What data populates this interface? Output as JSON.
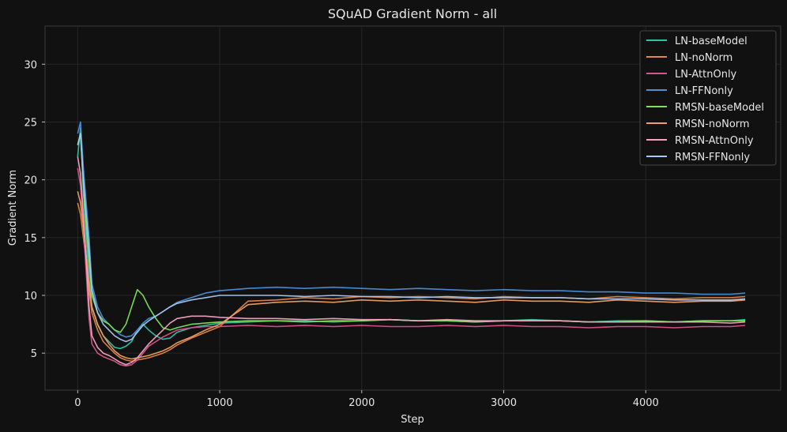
{
  "chart_data": {
    "type": "line",
    "title": "SQuAD Gradient Norm - all",
    "xlabel": "Step",
    "ylabel": "Gradient Norm",
    "xlim": [
      -230,
      4950
    ],
    "ylim": [
      1.8,
      33.3
    ],
    "xticks": [
      0,
      1000,
      2000,
      3000,
      4000
    ],
    "yticks": [
      5,
      10,
      15,
      20,
      25,
      30
    ],
    "grid": true,
    "legend_position": "top-right",
    "background": "#111111",
    "series": [
      {
        "name": "LN-baseModel",
        "color": "#2ec4a8",
        "x": [
          0,
          20,
          40,
          60,
          80,
          100,
          140,
          180,
          220,
          260,
          300,
          340,
          380,
          420,
          460,
          500,
          550,
          600,
          650,
          700,
          800,
          900,
          1000,
          1200,
          1400,
          1600,
          1800,
          2000,
          2200,
          2400,
          2600,
          2800,
          3000,
          3200,
          3400,
          3600,
          3800,
          4000,
          4200,
          4400,
          4600,
          4700
        ],
        "values": [
          22.0,
          24.5,
          19.0,
          15.0,
          11.5,
          9.0,
          7.5,
          6.5,
          6.0,
          5.5,
          5.4,
          5.6,
          6.0,
          7.0,
          7.5,
          7.0,
          6.5,
          6.2,
          6.3,
          6.8,
          7.2,
          7.4,
          7.6,
          7.7,
          7.8,
          7.8,
          7.7,
          7.8,
          7.9,
          7.8,
          7.8,
          7.7,
          7.8,
          7.9,
          7.8,
          7.7,
          7.8,
          7.8,
          7.7,
          7.8,
          7.8,
          7.9
        ]
      },
      {
        "name": "LN-noNorm",
        "color": "#e3864a",
        "x": [
          0,
          20,
          40,
          60,
          80,
          100,
          140,
          180,
          220,
          260,
          300,
          340,
          380,
          420,
          460,
          500,
          550,
          600,
          650,
          700,
          800,
          900,
          1000,
          1200,
          1400,
          1600,
          1800,
          2000,
          2200,
          2400,
          2600,
          2800,
          3000,
          3200,
          3400,
          3600,
          3800,
          4000,
          4200,
          4400,
          4600,
          4700
        ],
        "values": [
          18.0,
          17.0,
          15.0,
          13.0,
          10.5,
          8.5,
          7.0,
          6.0,
          5.5,
          5.0,
          4.6,
          4.4,
          4.3,
          4.4,
          4.5,
          4.6,
          4.8,
          5.0,
          5.3,
          5.7,
          6.3,
          6.8,
          7.3,
          9.5,
          9.6,
          9.8,
          9.7,
          9.9,
          9.8,
          9.9,
          9.8,
          9.7,
          9.9,
          9.8,
          9.8,
          9.7,
          9.9,
          9.8,
          9.7,
          9.8,
          9.8,
          9.9
        ]
      },
      {
        "name": "LN-AttnOnly",
        "color": "#d9538c",
        "x": [
          0,
          20,
          40,
          60,
          80,
          100,
          140,
          180,
          220,
          260,
          300,
          340,
          380,
          420,
          460,
          500,
          550,
          600,
          650,
          700,
          800,
          900,
          1000,
          1200,
          1400,
          1600,
          1800,
          2000,
          2200,
          2400,
          2600,
          2800,
          3000,
          3200,
          3400,
          3600,
          3800,
          4000,
          4200,
          4400,
          4600,
          4700
        ],
        "values": [
          21.0,
          19.5,
          16.0,
          12.0,
          8.0,
          5.8,
          5.0,
          4.7,
          4.5,
          4.3,
          4.0,
          3.9,
          4.0,
          4.4,
          5.0,
          5.6,
          6.0,
          6.4,
          6.7,
          7.0,
          7.2,
          7.3,
          7.3,
          7.4,
          7.3,
          7.4,
          7.3,
          7.4,
          7.3,
          7.3,
          7.4,
          7.3,
          7.4,
          7.3,
          7.3,
          7.2,
          7.3,
          7.3,
          7.2,
          7.3,
          7.3,
          7.4
        ]
      },
      {
        "name": "LN-FFNonly",
        "color": "#4a90d9",
        "x": [
          0,
          20,
          40,
          60,
          80,
          100,
          140,
          180,
          220,
          260,
          300,
          340,
          380,
          420,
          460,
          500,
          550,
          600,
          650,
          700,
          800,
          900,
          1000,
          1200,
          1400,
          1600,
          1800,
          2000,
          2200,
          2400,
          2600,
          2800,
          3000,
          3200,
          3400,
          3600,
          3800,
          4000,
          4200,
          4400,
          4600,
          4700
        ],
        "values": [
          24.0,
          25.0,
          21.0,
          18.0,
          15.0,
          11.0,
          9.0,
          8.0,
          7.5,
          7.0,
          6.6,
          6.4,
          6.5,
          7.0,
          7.6,
          8.0,
          8.2,
          8.6,
          9.0,
          9.4,
          9.8,
          10.2,
          10.4,
          10.6,
          10.7,
          10.6,
          10.7,
          10.6,
          10.5,
          10.6,
          10.5,
          10.4,
          10.5,
          10.4,
          10.4,
          10.3,
          10.3,
          10.2,
          10.2,
          10.1,
          10.1,
          10.2
        ]
      },
      {
        "name": "RMSN-baseModel",
        "color": "#7de35a",
        "x": [
          0,
          20,
          40,
          60,
          80,
          100,
          140,
          180,
          220,
          260,
          300,
          340,
          380,
          420,
          460,
          500,
          550,
          600,
          650,
          700,
          800,
          900,
          1000,
          1200,
          1400,
          1600,
          1800,
          2000,
          2200,
          2400,
          2600,
          2800,
          3000,
          3200,
          3400,
          3600,
          3800,
          4000,
          4200,
          4400,
          4600,
          4700
        ],
        "values": [
          23.0,
          24.0,
          19.5,
          16.0,
          13.0,
          10.0,
          8.5,
          7.8,
          7.5,
          7.0,
          6.8,
          7.5,
          9.0,
          10.5,
          10.0,
          9.0,
          8.0,
          7.2,
          7.0,
          7.2,
          7.5,
          7.6,
          7.7,
          7.8,
          7.8,
          7.7,
          7.8,
          7.8,
          7.9,
          7.8,
          7.8,
          7.7,
          7.8,
          7.8,
          7.8,
          7.7,
          7.7,
          7.8,
          7.7,
          7.8,
          7.8,
          7.8
        ]
      },
      {
        "name": "RMSN-noNorm",
        "color": "#f0a064",
        "x": [
          0,
          20,
          40,
          60,
          80,
          100,
          140,
          180,
          220,
          260,
          300,
          340,
          380,
          420,
          460,
          500,
          550,
          600,
          650,
          700,
          800,
          900,
          1000,
          1200,
          1400,
          1600,
          1800,
          2000,
          2200,
          2400,
          2600,
          2800,
          3000,
          3200,
          3400,
          3600,
          3800,
          4000,
          4200,
          4400,
          4600,
          4700
        ],
        "values": [
          19.0,
          18.0,
          16.0,
          13.5,
          11.0,
          9.0,
          7.5,
          6.5,
          5.8,
          5.2,
          4.8,
          4.6,
          4.5,
          4.6,
          4.7,
          4.8,
          5.0,
          5.2,
          5.5,
          5.9,
          6.4,
          7.0,
          7.5,
          9.2,
          9.4,
          9.5,
          9.4,
          9.6,
          9.5,
          9.6,
          9.5,
          9.4,
          9.6,
          9.5,
          9.5,
          9.4,
          9.6,
          9.5,
          9.4,
          9.5,
          9.5,
          9.6
        ]
      },
      {
        "name": "RMSN-AttnOnly",
        "color": "#f4a4c0",
        "x": [
          0,
          20,
          40,
          60,
          80,
          100,
          140,
          180,
          220,
          260,
          300,
          340,
          380,
          420,
          460,
          500,
          550,
          600,
          650,
          700,
          800,
          900,
          1000,
          1200,
          1400,
          1600,
          1800,
          2000,
          2200,
          2400,
          2600,
          2800,
          3000,
          3200,
          3400,
          3600,
          3800,
          4000,
          4200,
          4400,
          4600,
          4700
        ],
        "values": [
          22.0,
          20.5,
          17.0,
          13.0,
          9.0,
          6.5,
          5.5,
          5.0,
          4.8,
          4.5,
          4.2,
          4.0,
          4.2,
          4.6,
          5.2,
          5.8,
          6.4,
          7.0,
          7.6,
          8.0,
          8.2,
          8.2,
          8.1,
          8.0,
          8.0,
          7.9,
          8.0,
          7.9,
          7.9,
          7.8,
          7.9,
          7.8,
          7.8,
          7.8,
          7.8,
          7.7,
          7.7,
          7.7,
          7.7,
          7.7,
          7.6,
          7.7
        ]
      },
      {
        "name": "RMSN-FFNonly",
        "color": "#a8c8f0",
        "x": [
          0,
          20,
          40,
          60,
          80,
          100,
          140,
          180,
          220,
          260,
          300,
          340,
          380,
          420,
          460,
          500,
          550,
          600,
          650,
          700,
          800,
          900,
          1000,
          1200,
          1400,
          1600,
          1800,
          2000,
          2200,
          2400,
          2600,
          2800,
          3000,
          3200,
          3400,
          3600,
          3800,
          4000,
          4200,
          4400,
          4600,
          4700
        ],
        "values": [
          23.0,
          24.0,
          20.0,
          17.0,
          14.0,
          10.5,
          8.5,
          7.5,
          7.0,
          6.5,
          6.2,
          6.0,
          6.2,
          6.8,
          7.4,
          7.8,
          8.2,
          8.6,
          9.0,
          9.3,
          9.6,
          9.8,
          10.0,
          10.0,
          10.0,
          9.9,
          10.0,
          9.9,
          9.9,
          9.8,
          9.9,
          9.8,
          9.8,
          9.8,
          9.8,
          9.7,
          9.7,
          9.7,
          9.6,
          9.6,
          9.6,
          9.7
        ]
      }
    ]
  }
}
